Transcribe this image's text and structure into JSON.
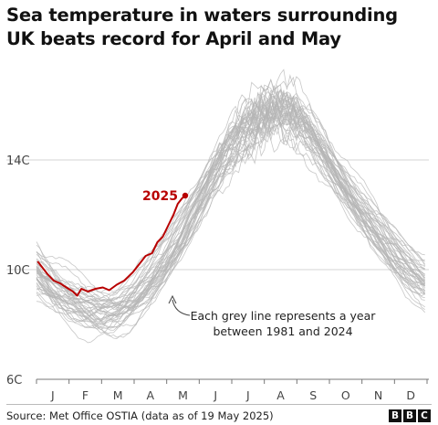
{
  "title": "Sea temperature in waters surrounding UK beats record for April and May",
  "source": "Source: Met Office OSTIA (data as of 19 May 2025)",
  "logo": [
    "B",
    "B",
    "C"
  ],
  "chart_data": {
    "type": "line",
    "title": "Sea temperature in waters surrounding UK beats record for April and May",
    "xlabel": "",
    "ylabel": "",
    "x_ticks": [
      "J",
      "F",
      "M",
      "A",
      "M",
      "J",
      "J",
      "A",
      "S",
      "O",
      "N",
      "D"
    ],
    "y_ticks": [
      "14C",
      "10C",
      "6C"
    ],
    "y_tick_values": [
      14,
      10,
      6
    ],
    "ylim": [
      6,
      17.5
    ],
    "xlim_days": [
      0,
      365
    ],
    "grid": "horizontal",
    "highlight_series": {
      "name": "2025",
      "color": "#b80000",
      "points": [
        [
          1,
          10.3
        ],
        [
          5,
          10.1
        ],
        [
          10,
          9.85
        ],
        [
          16,
          9.6
        ],
        [
          22,
          9.5
        ],
        [
          28,
          9.35
        ],
        [
          34,
          9.2
        ],
        [
          38,
          9.05
        ],
        [
          42,
          9.3
        ],
        [
          48,
          9.2
        ],
        [
          55,
          9.3
        ],
        [
          62,
          9.35
        ],
        [
          68,
          9.25
        ],
        [
          75,
          9.45
        ],
        [
          82,
          9.6
        ],
        [
          90,
          9.9
        ],
        [
          96,
          10.2
        ],
        [
          102,
          10.5
        ],
        [
          108,
          10.6
        ],
        [
          113,
          11.0
        ],
        [
          118,
          11.2
        ],
        [
          123,
          11.6
        ],
        [
          128,
          12.0
        ],
        [
          132,
          12.4
        ],
        [
          136,
          12.6
        ],
        [
          139,
          12.7
        ]
      ]
    },
    "background_series_label": "1981–2024",
    "background_series_color": "#b5b5b5",
    "background_climatology": [
      [
        0,
        9.9
      ],
      [
        15,
        9.3
      ],
      [
        30,
        8.85
      ],
      [
        45,
        8.55
      ],
      [
        60,
        8.45
      ],
      [
        75,
        8.55
      ],
      [
        90,
        8.9
      ],
      [
        105,
        9.5
      ],
      [
        120,
        10.3
      ],
      [
        135,
        11.3
      ],
      [
        150,
        12.4
      ],
      [
        165,
        13.4
      ],
      [
        180,
        14.3
      ],
      [
        195,
        15.0
      ],
      [
        210,
        15.5
      ],
      [
        225,
        15.7
      ],
      [
        240,
        15.5
      ],
      [
        255,
        14.9
      ],
      [
        270,
        14.1
      ],
      [
        285,
        13.2
      ],
      [
        300,
        12.3
      ],
      [
        315,
        11.5
      ],
      [
        330,
        10.8
      ],
      [
        345,
        10.2
      ],
      [
        365,
        9.5
      ]
    ],
    "annotations": [
      {
        "text": "Each grey line represents a year",
        "line": 1
      },
      {
        "text": "between 1981 and 2024",
        "line": 2
      }
    ],
    "label_2025": "2025"
  }
}
